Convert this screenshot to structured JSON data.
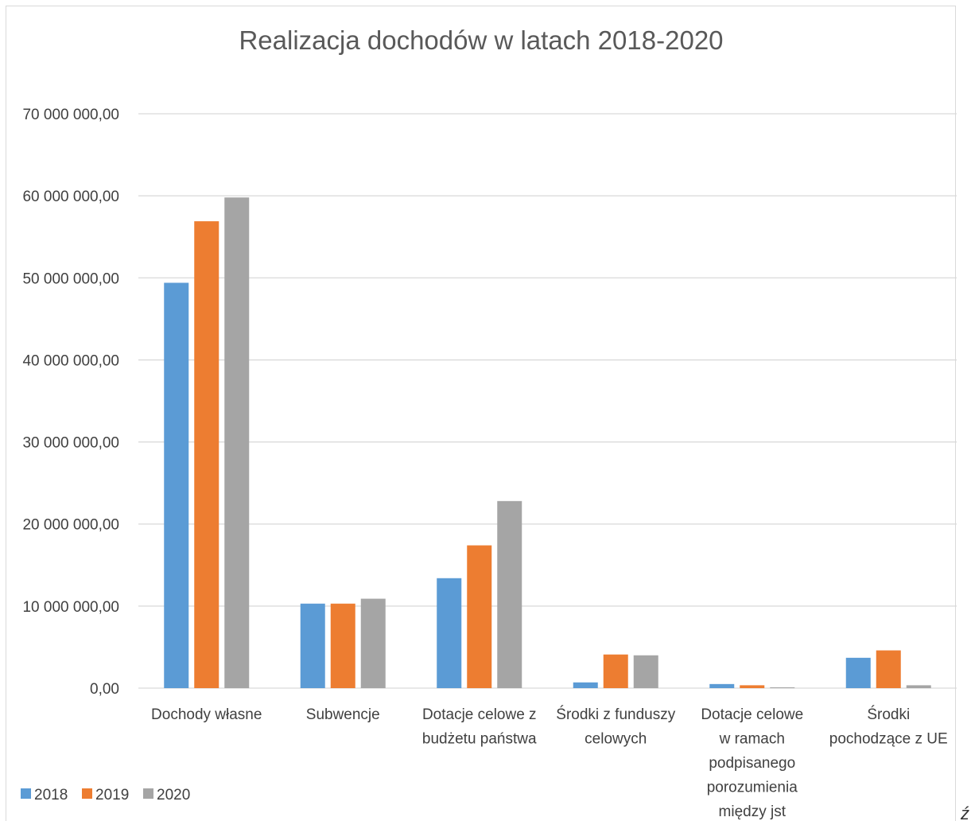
{
  "chart_data": {
    "type": "bar",
    "title": "Realizacja dochodów w latach 2018-2020",
    "xlabel": "",
    "ylabel": "",
    "ylim": [
      0,
      70000000
    ],
    "yticks": [
      0,
      10000000,
      20000000,
      30000000,
      40000000,
      50000000,
      60000000,
      70000000
    ],
    "ytick_labels": [
      "0,00",
      "10 000 000,00",
      "20 000 000,00",
      "30 000 000,00",
      "40 000 000,00",
      "50 000 000,00",
      "60 000 000,00",
      "70 000 000,00"
    ],
    "grid": true,
    "legend": "bottom-left",
    "categories": [
      [
        "Dochody własne"
      ],
      [
        "Subwencje"
      ],
      [
        "Dotacje celowe z",
        "budżetu państwa"
      ],
      [
        "Środki z funduszy",
        "celowych"
      ],
      [
        "Dotacje celowe",
        "w ramach",
        "podpisanego",
        "porozumienia",
        "między jst"
      ],
      [
        "Środki",
        "pochodzące z UE"
      ]
    ],
    "series": [
      {
        "name": "2018",
        "color": "#5b9bd5",
        "values": [
          49400000,
          10300000,
          13400000,
          700000,
          500000,
          3700000
        ]
      },
      {
        "name": "2019",
        "color": "#ed7d31",
        "values": [
          56900000,
          10300000,
          17400000,
          4100000,
          350000,
          4600000
        ]
      },
      {
        "name": "2020",
        "color": "#a5a5a5",
        "values": [
          59800000,
          10900000,
          22800000,
          4000000,
          100000,
          350000
        ]
      }
    ]
  },
  "corner_mark": "ź"
}
